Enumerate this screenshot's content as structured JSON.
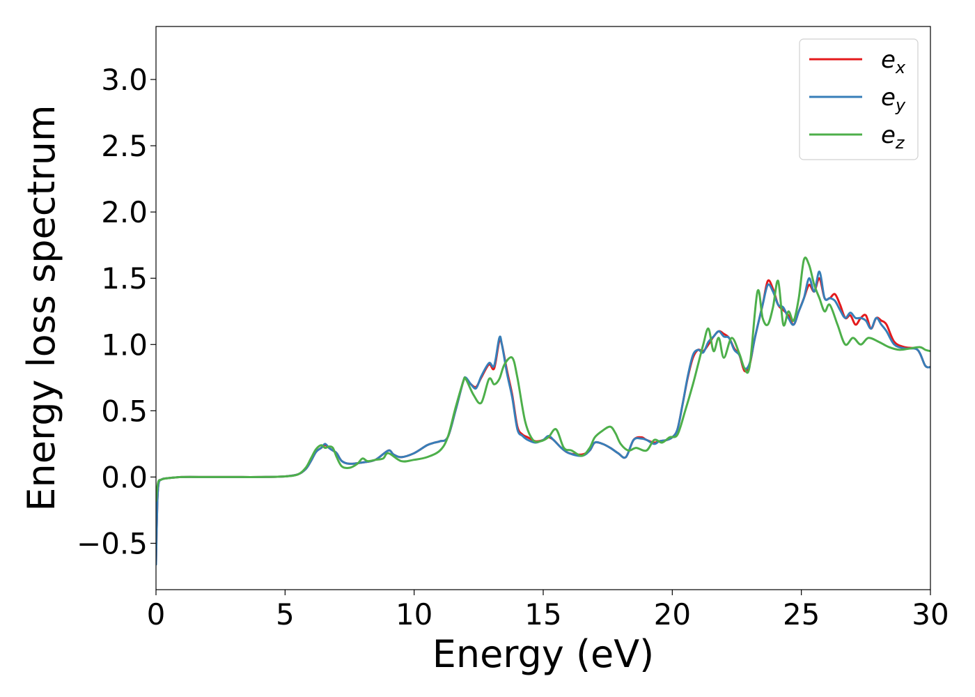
{
  "chart_data": {
    "type": "line",
    "xlabel": "Energy (eV)",
    "ylabel": "Energy loss spectrum",
    "xlim": [
      0,
      30
    ],
    "ylim": [
      -0.85,
      3.4
    ],
    "xticks": [
      0,
      5,
      10,
      15,
      20,
      25,
      30
    ],
    "xtick_labels": [
      "0",
      "5",
      "10",
      "15",
      "20",
      "25",
      "30"
    ],
    "yticks": [
      -0.5,
      0.0,
      0.5,
      1.0,
      1.5,
      2.0,
      2.5,
      3.0
    ],
    "ytick_labels": [
      "−0.5",
      "0.0",
      "0.5",
      "1.0",
      "1.5",
      "2.0",
      "2.5",
      "3.0"
    ],
    "grid": false,
    "legend_position": "top-right",
    "series": [
      {
        "name": "e_x",
        "label_main": "e",
        "label_sub": "x",
        "color": "#e41a1c",
        "x": [
          0,
          0.05,
          0.1,
          0.2,
          0.4,
          1,
          2,
          3,
          4,
          5,
          5.5,
          5.8,
          6.0,
          6.2,
          6.4,
          6.55,
          6.7,
          6.85,
          7.0,
          7.2,
          7.5,
          8.0,
          8.5,
          9.0,
          9.2,
          9.5,
          10.0,
          10.5,
          10.8,
          11.0,
          11.3,
          11.6,
          11.9,
          12.0,
          12.2,
          12.4,
          12.6,
          12.9,
          13.1,
          13.3,
          13.4,
          13.6,
          13.8,
          14.0,
          14.2,
          14.4,
          14.7,
          15.0,
          15.2,
          15.4,
          15.7,
          16.0,
          16.5,
          16.8,
          17.0,
          17.3,
          17.6,
          17.9,
          18.2,
          18.5,
          18.8,
          19.0,
          19.3,
          19.5,
          19.8,
          20.0,
          20.2,
          20.4,
          20.6,
          20.8,
          21.0,
          21.2,
          21.4,
          21.6,
          21.8,
          22.0,
          22.2,
          22.4,
          22.6,
          22.8,
          23.0,
          23.2,
          23.5,
          23.7,
          23.9,
          24.1,
          24.3,
          24.5,
          24.7,
          24.9,
          25.1,
          25.3,
          25.5,
          25.7,
          25.9,
          26.1,
          26.3,
          26.5,
          26.7,
          26.9,
          27.1,
          27.3,
          27.5,
          27.7,
          27.9,
          28.1,
          28.3,
          28.6,
          29.0,
          29.5,
          29.8,
          30.0
        ],
        "values": [
          -0.65,
          -0.2,
          -0.05,
          -0.02,
          -0.01,
          0.0,
          0.0,
          0.0,
          0.0,
          0.005,
          0.02,
          0.06,
          0.12,
          0.19,
          0.22,
          0.24,
          0.22,
          0.2,
          0.18,
          0.12,
          0.1,
          0.11,
          0.13,
          0.2,
          0.17,
          0.15,
          0.18,
          0.24,
          0.26,
          0.27,
          0.3,
          0.5,
          0.72,
          0.74,
          0.7,
          0.68,
          0.75,
          0.85,
          0.82,
          1.03,
          1.0,
          0.8,
          0.62,
          0.38,
          0.32,
          0.3,
          0.27,
          0.28,
          0.3,
          0.28,
          0.22,
          0.18,
          0.17,
          0.2,
          0.26,
          0.25,
          0.22,
          0.18,
          0.15,
          0.28,
          0.3,
          0.28,
          0.26,
          0.27,
          0.28,
          0.3,
          0.36,
          0.55,
          0.75,
          0.9,
          0.96,
          0.95,
          1.0,
          1.06,
          1.1,
          1.08,
          1.05,
          0.97,
          0.92,
          0.8,
          0.85,
          1.05,
          1.3,
          1.48,
          1.42,
          1.3,
          1.26,
          1.22,
          1.15,
          1.25,
          1.35,
          1.45,
          1.4,
          1.5,
          1.35,
          1.35,
          1.38,
          1.3,
          1.2,
          1.22,
          1.15,
          1.2,
          1.22,
          1.12,
          1.2,
          1.18,
          1.15,
          1.02,
          0.98,
          0.96,
          0.84,
          0.83
        ]
      },
      {
        "name": "e_y",
        "label_main": "e",
        "label_sub": "y",
        "color": "#377eb8",
        "x": [
          0,
          0.05,
          0.1,
          0.2,
          0.4,
          1,
          2,
          3,
          4,
          5,
          5.5,
          5.8,
          6.0,
          6.2,
          6.4,
          6.55,
          6.7,
          6.85,
          7.0,
          7.2,
          7.5,
          8.0,
          8.5,
          9.0,
          9.2,
          9.5,
          10.0,
          10.5,
          10.8,
          11.0,
          11.3,
          11.6,
          11.9,
          12.0,
          12.2,
          12.4,
          12.6,
          12.9,
          13.1,
          13.3,
          13.4,
          13.6,
          13.8,
          14.0,
          14.2,
          14.4,
          14.7,
          15.0,
          15.2,
          15.4,
          15.7,
          16.0,
          16.5,
          16.8,
          17.0,
          17.3,
          17.6,
          17.9,
          18.2,
          18.5,
          18.8,
          19.0,
          19.3,
          19.5,
          19.8,
          20.0,
          20.2,
          20.4,
          20.6,
          20.8,
          21.0,
          21.2,
          21.4,
          21.6,
          21.8,
          22.0,
          22.2,
          22.4,
          22.6,
          22.8,
          23.0,
          23.2,
          23.5,
          23.7,
          23.9,
          24.1,
          24.3,
          24.5,
          24.7,
          24.9,
          25.1,
          25.3,
          25.5,
          25.7,
          25.9,
          26.1,
          26.3,
          26.5,
          26.7,
          26.9,
          27.1,
          27.3,
          27.5,
          27.7,
          27.9,
          28.1,
          28.3,
          28.6,
          29.0,
          29.5,
          29.8,
          30.0
        ],
        "values": [
          -0.66,
          -0.2,
          -0.05,
          -0.02,
          -0.01,
          0.0,
          0.0,
          0.0,
          0.0,
          0.005,
          0.02,
          0.06,
          0.12,
          0.19,
          0.22,
          0.25,
          0.22,
          0.2,
          0.18,
          0.12,
          0.1,
          0.11,
          0.13,
          0.2,
          0.17,
          0.15,
          0.18,
          0.24,
          0.26,
          0.27,
          0.3,
          0.5,
          0.72,
          0.75,
          0.7,
          0.67,
          0.76,
          0.86,
          0.84,
          1.05,
          1.0,
          0.78,
          0.6,
          0.36,
          0.31,
          0.28,
          0.26,
          0.28,
          0.31,
          0.28,
          0.22,
          0.18,
          0.16,
          0.2,
          0.26,
          0.25,
          0.22,
          0.18,
          0.15,
          0.28,
          0.29,
          0.28,
          0.25,
          0.27,
          0.28,
          0.3,
          0.36,
          0.55,
          0.76,
          0.92,
          0.96,
          0.94,
          1.02,
          1.06,
          1.1,
          1.06,
          1.05,
          0.96,
          0.92,
          0.82,
          0.86,
          1.05,
          1.3,
          1.45,
          1.4,
          1.3,
          1.28,
          1.2,
          1.15,
          1.25,
          1.35,
          1.5,
          1.4,
          1.55,
          1.35,
          1.35,
          1.33,
          1.26,
          1.2,
          1.24,
          1.2,
          1.2,
          1.18,
          1.12,
          1.2,
          1.15,
          1.1,
          1.0,
          0.97,
          0.96,
          0.84,
          0.83
        ]
      },
      {
        "name": "e_z",
        "label_main": "e",
        "label_sub": "z",
        "color": "#4daf4a",
        "x": [
          0,
          0.05,
          0.1,
          0.2,
          0.4,
          1,
          2,
          3,
          4,
          5,
          5.5,
          5.8,
          6.0,
          6.2,
          6.4,
          6.55,
          6.7,
          6.85,
          7.0,
          7.2,
          7.5,
          7.8,
          8.0,
          8.2,
          8.5,
          8.8,
          9.0,
          9.5,
          10.0,
          10.5,
          11.0,
          11.3,
          11.6,
          11.9,
          12.0,
          12.3,
          12.6,
          12.9,
          13.1,
          13.3,
          13.5,
          13.8,
          14.0,
          14.3,
          14.6,
          14.9,
          15.2,
          15.5,
          15.8,
          16.1,
          16.5,
          16.8,
          17.0,
          17.3,
          17.6,
          17.8,
          18.0,
          18.3,
          18.6,
          19.0,
          19.3,
          19.6,
          19.9,
          20.2,
          20.5,
          20.8,
          21.0,
          21.2,
          21.4,
          21.6,
          21.8,
          22.0,
          22.3,
          22.6,
          22.8,
          23.0,
          23.3,
          23.5,
          23.7,
          23.9,
          24.1,
          24.3,
          24.5,
          24.7,
          24.9,
          25.1,
          25.3,
          25.5,
          25.7,
          25.9,
          26.1,
          26.4,
          26.7,
          27.0,
          27.3,
          27.6,
          28.0,
          28.4,
          28.8,
          29.2,
          29.6,
          29.8,
          30.0
        ],
        "values": [
          -0.18,
          -0.08,
          -0.03,
          -0.02,
          -0.01,
          0.0,
          0.0,
          0.0,
          0.0,
          0.005,
          0.02,
          0.07,
          0.14,
          0.21,
          0.24,
          0.22,
          0.23,
          0.22,
          0.15,
          0.08,
          0.07,
          0.1,
          0.14,
          0.12,
          0.13,
          0.14,
          0.18,
          0.12,
          0.13,
          0.15,
          0.2,
          0.3,
          0.52,
          0.72,
          0.74,
          0.62,
          0.56,
          0.74,
          0.7,
          0.74,
          0.85,
          0.9,
          0.75,
          0.42,
          0.28,
          0.27,
          0.3,
          0.36,
          0.22,
          0.2,
          0.16,
          0.22,
          0.3,
          0.35,
          0.38,
          0.33,
          0.25,
          0.2,
          0.22,
          0.2,
          0.28,
          0.26,
          0.3,
          0.32,
          0.5,
          0.7,
          0.85,
          1.0,
          1.12,
          0.95,
          1.05,
          0.9,
          1.05,
          0.93,
          0.82,
          0.84,
          1.4,
          1.2,
          1.15,
          1.28,
          1.48,
          1.15,
          1.25,
          1.18,
          1.35,
          1.64,
          1.6,
          1.45,
          1.35,
          1.25,
          1.3,
          1.15,
          1.0,
          1.05,
          1.0,
          1.05,
          1.02,
          0.98,
          0.96,
          0.97,
          0.98,
          0.96,
          0.95
        ]
      }
    ]
  }
}
